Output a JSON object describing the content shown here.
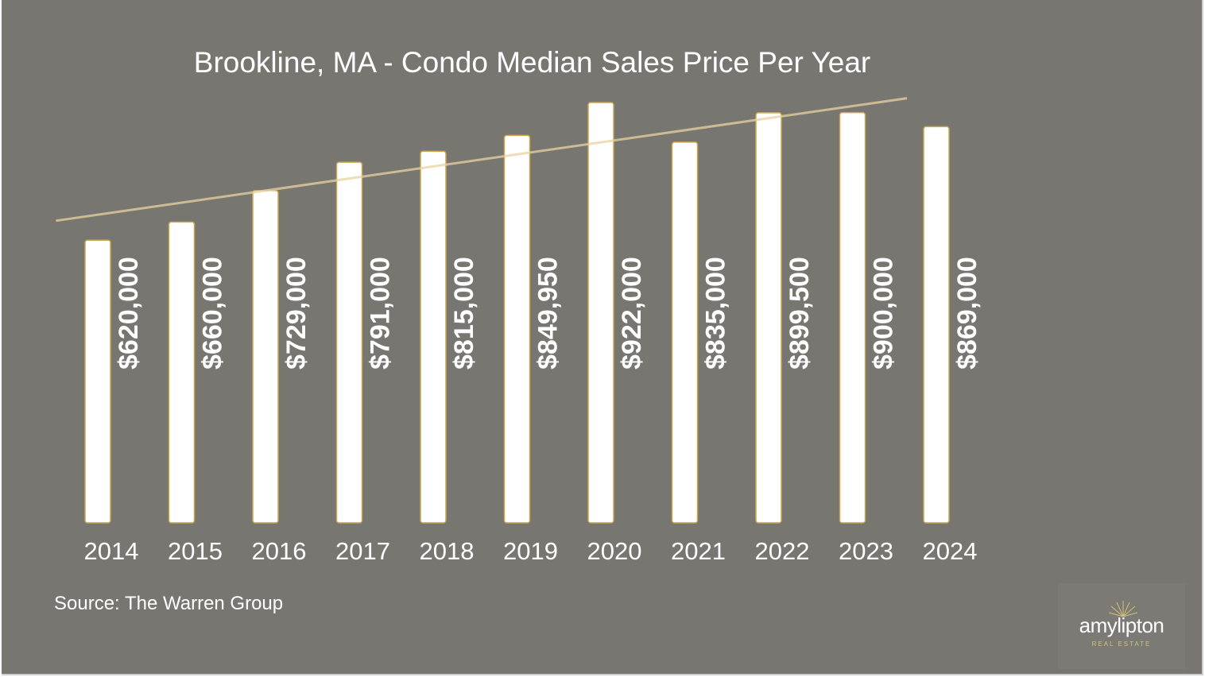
{
  "title": "Brookline, MA - Condo Median Sales Price Per Year",
  "source": "Source: The Warren Group",
  "logo": {
    "name": "amylipton",
    "subtitle": "REAL ESTATE"
  },
  "colors": {
    "background": "#777670",
    "bar": "#ffffff",
    "bar_border": "#c9a64a",
    "trend": "#e8d3a0",
    "text": "#ffffff"
  },
  "chart_data": {
    "type": "bar",
    "title": "Brookline, MA - Condo Median Sales Price Per Year",
    "categories": [
      "2014",
      "2015",
      "2016",
      "2017",
      "2018",
      "2019",
      "2020",
      "2021",
      "2022",
      "2023",
      "2024"
    ],
    "values": [
      620000,
      660000,
      729000,
      791000,
      815000,
      849950,
      922000,
      835000,
      899500,
      900000,
      869000
    ],
    "data_labels": [
      "$620,000",
      "$660,000",
      "$729,000",
      "$791,000",
      "$815,000",
      "$849,950",
      "$922,000",
      "$835,000",
      "$899,500",
      "$900,000",
      "$869,000"
    ],
    "ylim": [
      0,
      922000
    ],
    "trendline": "linear",
    "xlabel": "",
    "ylabel": "",
    "grid": false,
    "legend": "none"
  }
}
